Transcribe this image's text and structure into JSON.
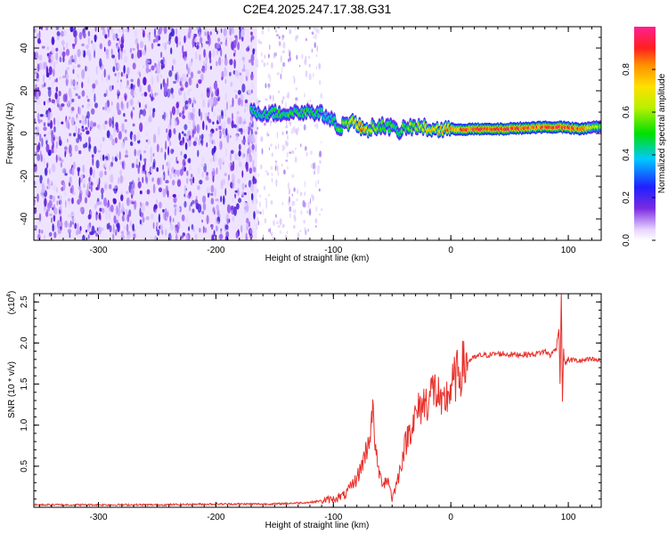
{
  "title": "C2E4.2025.247.17.38.G31",
  "colors": {
    "snr_line": "#e8302a",
    "axis": "#000000",
    "background": "#ffffff"
  },
  "chart_data": [
    {
      "type": "heatmap",
      "name": "spectrogram",
      "xlabel": "Height of straight line (km)",
      "ylabel": "Frequency (Hz)",
      "xlim": [
        -355,
        128
      ],
      "ylim": [
        -50,
        50
      ],
      "x_ticks": [
        -300,
        -200,
        -100,
        0,
        100
      ],
      "x_tick_labels": [
        "-300",
        "-200",
        "-100",
        "0",
        "100"
      ],
      "y_ticks": [
        -40,
        -20,
        0,
        20,
        40
      ],
      "y_tick_labels": [
        "-40",
        "-20",
        "0",
        "20",
        "40"
      ],
      "colorbar": {
        "label": "Normalized spectral amplitude",
        "range": [
          0,
          1
        ],
        "ticks": [
          0.0,
          0.2,
          0.4,
          0.6,
          0.8
        ],
        "tick_labels": [
          "0.0",
          "0.2",
          "0.4",
          "0.6",
          "0.8"
        ]
      },
      "noise_region_km": [
        -355,
        -165
      ],
      "faint_noise_region_km": [
        -165,
        -110
      ],
      "signal_ridge": {
        "x": [
          -170,
          -150,
          -130,
          -115,
          -105,
          -95,
          -85,
          -75,
          -65,
          -55,
          -45,
          -35,
          -25,
          -15,
          -5,
          5,
          20,
          40,
          60,
          80,
          95,
          110,
          128
        ],
        "freq": [
          10,
          9.5,
          10,
          10,
          8,
          3,
          6,
          2,
          3,
          4,
          1,
          3,
          3,
          2,
          2,
          2,
          2,
          2,
          2.5,
          3,
          3,
          2,
          3.5
        ],
        "amplitude": [
          0.45,
          0.5,
          0.55,
          0.5,
          0.45,
          0.55,
          0.65,
          0.85,
          0.6,
          0.55,
          0.5,
          0.6,
          0.7,
          0.75,
          0.8,
          0.85,
          0.95,
          0.95,
          0.9,
          0.9,
          0.95,
          0.9,
          0.6
        ]
      }
    },
    {
      "type": "line",
      "name": "snr",
      "xlabel": "Height of straight line (km)",
      "ylabel": "SNR (10 * v/v)",
      "y_multiplier": "(x10",
      "y_multiplier_exp": "4",
      "y_multiplier_close": ")",
      "xlim": [
        -355,
        128
      ],
      "ylim": [
        0,
        2.6
      ],
      "x_ticks": [
        -300,
        -200,
        -100,
        0,
        100
      ],
      "x_tick_labels": [
        "-300",
        "-200",
        "-100",
        "0",
        "100"
      ],
      "y_ticks": [
        0.5,
        1.0,
        1.5,
        2.0,
        2.5
      ],
      "y_tick_labels": [
        "0.5",
        "1.0",
        "1.5",
        "2.0",
        "2.5"
      ],
      "series": [
        {
          "name": "SNR",
          "x": [
            -355,
            -300,
            -250,
            -200,
            -150,
            -120,
            -110,
            -100,
            -90,
            -85,
            -80,
            -75,
            -70,
            -68,
            -66,
            -65,
            -64,
            -62,
            -60,
            -57,
            -55,
            -52,
            -50,
            -45,
            -40,
            -35,
            -30,
            -25,
            -20,
            -15,
            -10,
            -8,
            -5,
            0,
            5,
            10,
            15,
            20,
            25,
            30,
            40,
            50,
            60,
            70,
            80,
            85,
            90,
            92,
            93,
            94,
            95,
            96,
            97,
            100,
            110,
            120,
            128
          ],
          "y": [
            0.03,
            0.03,
            0.03,
            0.04,
            0.04,
            0.06,
            0.08,
            0.1,
            0.15,
            0.25,
            0.35,
            0.55,
            0.8,
            1.0,
            1.15,
            0.95,
            0.65,
            0.5,
            0.35,
            0.3,
            0.35,
            0.28,
            0.1,
            0.35,
            0.7,
            0.95,
            1.1,
            1.25,
            1.3,
            1.45,
            1.35,
            1.15,
            1.3,
            1.45,
            1.6,
            1.7,
            1.78,
            1.82,
            1.85,
            1.85,
            1.87,
            1.86,
            1.86,
            1.86,
            1.9,
            1.85,
            1.95,
            2.2,
            1.5,
            2.65,
            1.3,
            1.9,
            1.75,
            1.8,
            1.78,
            1.8,
            1.78
          ]
        }
      ]
    }
  ]
}
